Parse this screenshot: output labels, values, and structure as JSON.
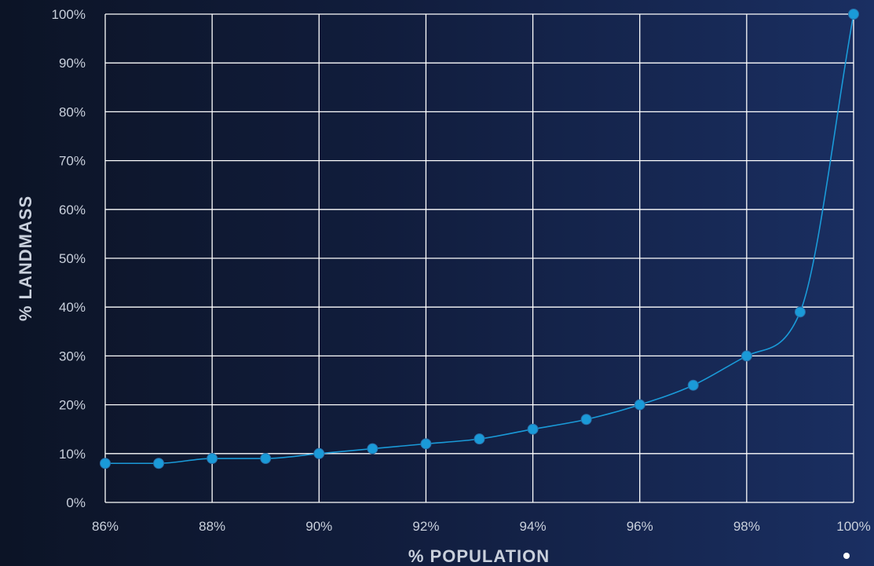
{
  "chart_data": {
    "type": "line",
    "title": "",
    "xlabel": "% POPULATION",
    "ylabel": "% LANDMASS",
    "xlim": [
      86,
      100
    ],
    "ylim": [
      0,
      100
    ],
    "x_ticks": [
      "86%",
      "88%",
      "90%",
      "92%",
      "94%",
      "96%",
      "98%",
      "100%"
    ],
    "y_ticks": [
      "0%",
      "10%",
      "20%",
      "30%",
      "40%",
      "50%",
      "60%",
      "70%",
      "80%",
      "90%",
      "100%"
    ],
    "grid": true,
    "smooth": true,
    "series": [
      {
        "color": "#1a9ad8",
        "x": [
          86,
          87,
          88,
          89,
          90,
          91,
          92,
          93,
          94,
          95,
          96,
          97,
          98,
          99,
          100
        ],
        "y": [
          8,
          8,
          9,
          9,
          10,
          11,
          12,
          13,
          15,
          17,
          20,
          24,
          30,
          39,
          100
        ]
      }
    ]
  },
  "colors": {
    "grid": "#ffffff",
    "text": "#c9d0dc",
    "series": "#1a9ad8"
  }
}
